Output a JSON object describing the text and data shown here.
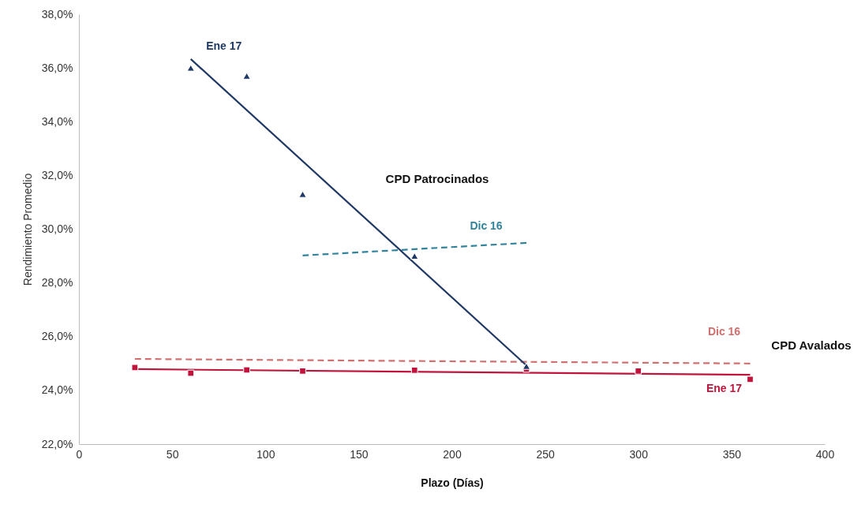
{
  "chart_data": {
    "type": "scatter",
    "xlabel": "Plazo (Días)",
    "ylabel": "Rendimiento Promedio",
    "xlim": [
      0,
      400
    ],
    "xticks": [
      0,
      50,
      100,
      150,
      200,
      250,
      300,
      350,
      400
    ],
    "ylim": [
      22,
      38
    ],
    "yticks": [
      {
        "value": 22,
        "label": "22,0%"
      },
      {
        "value": 24,
        "label": "24,0%"
      },
      {
        "value": 26,
        "label": "26,0%"
      },
      {
        "value": 28,
        "label": "28,0%"
      },
      {
        "value": 30,
        "label": "30,0%"
      },
      {
        "value": 32,
        "label": "32,0%"
      },
      {
        "value": 34,
        "label": "34,0%"
      },
      {
        "value": 36,
        "label": "36,0%"
      },
      {
        "value": 38,
        "label": "38,0%"
      }
    ],
    "grid": false,
    "legend": false,
    "series": [
      {
        "type": "scatter",
        "marker": "triangle",
        "color": "#1f3864",
        "x": [
          60,
          90,
          120,
          180,
          240
        ],
        "values": [
          36.0,
          35.7,
          31.3,
          29.0,
          24.9
        ]
      },
      {
        "type": "line",
        "name": "Ene 17",
        "line_style": "solid",
        "color": "#1f3864",
        "x": [
          60,
          240
        ],
        "values": [
          36.33,
          24.93
        ]
      },
      {
        "type": "line",
        "name": "Dic 16",
        "line_style": "dashed",
        "color": "#31849b",
        "x": [
          120,
          240
        ],
        "values": [
          29.02,
          29.49
        ]
      },
      {
        "type": "scatter",
        "marker": "square",
        "color": "#c0143c",
        "x": [
          30,
          60,
          90,
          120,
          180,
          240,
          300,
          360
        ],
        "values": [
          24.85,
          24.64,
          24.76,
          24.72,
          24.75,
          24.79,
          24.72,
          24.41
        ]
      },
      {
        "type": "line",
        "name": "Ene 17",
        "line_style": "solid",
        "color": "#c0143c",
        "x": [
          30,
          360
        ],
        "values": [
          24.79,
          24.58
        ]
      },
      {
        "type": "line",
        "name": "Dic 16",
        "line_style": "dashed",
        "color": "#d07070",
        "x": [
          30,
          360
        ],
        "values": [
          25.17,
          25.0
        ]
      }
    ],
    "annotations": [
      "CPD Patrocinados",
      "CPD Avalados"
    ]
  }
}
